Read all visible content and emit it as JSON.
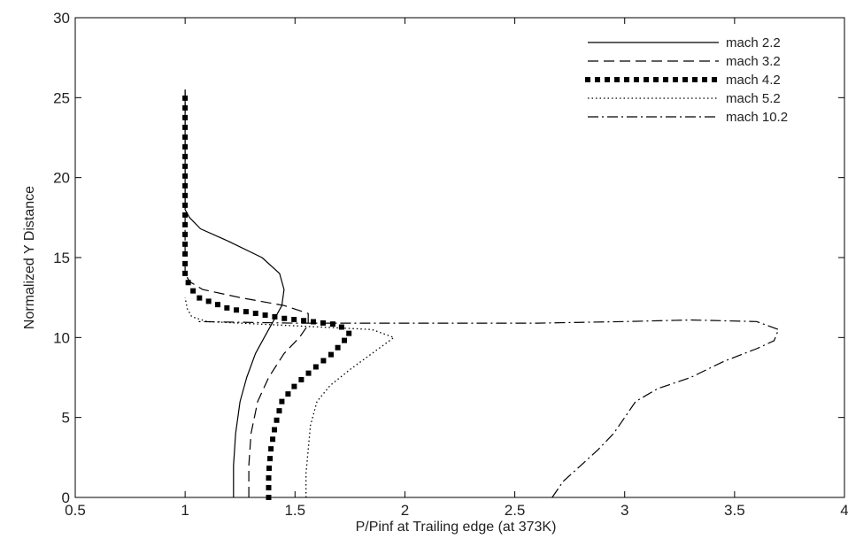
{
  "chart_data": {
    "type": "line",
    "title": "",
    "xlabel": "P/Pinf at Trailing edge (at 373K)",
    "ylabel": "Normalized Y Distance",
    "xlim": [
      0.5,
      4
    ],
    "ylim": [
      0,
      30
    ],
    "x_ticks": [
      "0.5",
      "1",
      "1.5",
      "2",
      "2.5",
      "3",
      "3.5",
      "4"
    ],
    "y_ticks": [
      "0",
      "5",
      "10",
      "15",
      "20",
      "25",
      "30"
    ],
    "grid": false,
    "legend_position": "top-right",
    "series": [
      {
        "name": "mach 2.2",
        "style": "solid",
        "x": [
          1.22,
          1.22,
          1.23,
          1.25,
          1.28,
          1.32,
          1.36,
          1.4,
          1.44,
          1.45,
          1.43,
          1.35,
          1.2,
          1.07,
          1.02,
          1.0,
          1.0
        ],
        "y": [
          0,
          2,
          4,
          6,
          7.5,
          9,
          10,
          11,
          12,
          13,
          14,
          15,
          16,
          16.8,
          17.5,
          18,
          25.5
        ]
      },
      {
        "name": "mach 3.2",
        "style": "dashed",
        "x": [
          1.29,
          1.29,
          1.3,
          1.33,
          1.38,
          1.45,
          1.52,
          1.56,
          1.56,
          1.45,
          1.25,
          1.08,
          1.02,
          1.0,
          1.0
        ],
        "y": [
          0,
          2,
          4,
          6,
          7.5,
          9,
          10,
          10.8,
          11.5,
          12.0,
          12.5,
          13.0,
          13.5,
          14.0,
          25.5
        ]
      },
      {
        "name": "mach 4.2",
        "style": "thick-dotted",
        "x": [
          1.38,
          1.38,
          1.39,
          1.41,
          1.44,
          1.5,
          1.58,
          1.67,
          1.75,
          1.7,
          1.45,
          1.2,
          1.06,
          1.02,
          1.0,
          1.0
        ],
        "y": [
          0,
          1.5,
          3,
          4.5,
          6,
          7,
          8,
          9,
          10.2,
          10.8,
          11.2,
          11.8,
          12.5,
          13.2,
          14.0,
          25.5
        ]
      },
      {
        "name": "mach 5.2",
        "style": "dotted",
        "x": [
          1.55,
          1.55,
          1.56,
          1.57,
          1.6,
          1.66,
          1.75,
          1.85,
          1.95,
          1.85,
          1.4,
          1.1,
          1.03,
          1.01,
          1.0
        ],
        "y": [
          0,
          1.5,
          3,
          4.5,
          6,
          7,
          8,
          9,
          10,
          10.5,
          10.8,
          11.0,
          11.3,
          11.8,
          12.5
        ]
      },
      {
        "name": "mach 10.2",
        "style": "dash-dot",
        "x": [
          2.67,
          2.72,
          2.8,
          2.88,
          2.95,
          3.0,
          3.05,
          3.15,
          3.3,
          3.45,
          3.6,
          3.68,
          3.7,
          3.6,
          3.3,
          3.0,
          2.6,
          1.5,
          1.05
        ],
        "y": [
          0,
          1,
          2,
          3,
          4,
          5,
          6,
          6.8,
          7.5,
          8.5,
          9.3,
          9.8,
          10.5,
          11.0,
          11.1,
          11.0,
          10.9,
          10.9,
          11.0
        ]
      }
    ]
  }
}
